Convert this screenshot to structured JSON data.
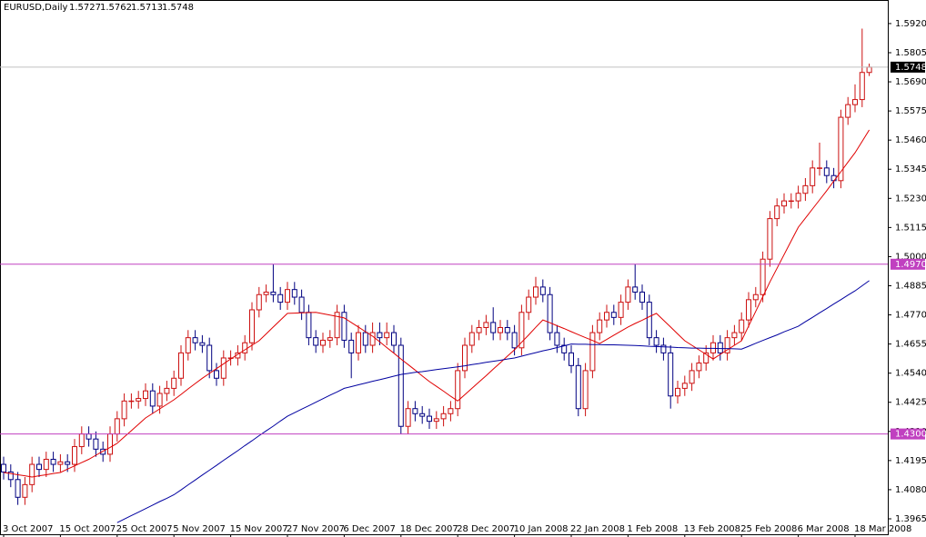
{
  "chart_data": {
    "type": "candlestick",
    "title": "EURUSD,Daily",
    "categories": [
      "3 Oct 2007",
      null,
      null,
      null,
      null,
      null,
      null,
      null,
      "15 Oct 2007",
      null,
      null,
      null,
      null,
      null,
      null,
      null,
      "25 Oct 2007",
      null,
      null,
      null,
      null,
      null,
      null,
      null,
      "5 Nov 2007",
      null,
      null,
      null,
      null,
      null,
      null,
      null,
      "15 Nov 2007",
      null,
      null,
      null,
      null,
      null,
      null,
      null,
      "27 Nov 2007",
      null,
      null,
      null,
      null,
      null,
      null,
      null,
      "6 Dec 2007",
      null,
      null,
      null,
      null,
      null,
      null,
      null,
      "18 Dec 2007",
      null,
      null,
      null,
      null,
      null,
      null,
      null,
      "28 Dec 2007",
      null,
      null,
      null,
      null,
      null,
      null,
      null,
      "10 Jan 2008",
      null,
      null,
      null,
      null,
      null,
      null,
      null,
      "22 Jan 2008",
      null,
      null,
      null,
      null,
      null,
      null,
      null,
      "1 Feb 2008",
      null,
      null,
      null,
      null,
      null,
      null,
      null,
      "13 Feb 2008",
      null,
      null,
      null,
      null,
      null,
      null,
      null,
      "25 Feb 2008",
      null,
      null,
      null,
      null,
      null,
      null,
      null,
      "6 Mar 2008",
      null,
      null,
      null,
      null,
      null,
      null,
      null,
      "18 Mar 2008",
      null,
      null
    ],
    "open": [
      1.418,
      1.415,
      1.412,
      1.405,
      1.41,
      1.418,
      1.416,
      1.42,
      1.418,
      1.419,
      1.418,
      1.425,
      1.43,
      1.428,
      1.424,
      1.422,
      1.43,
      1.436,
      1.443,
      1.443,
      1.444,
      1.447,
      1.441,
      1.446,
      1.448,
      1.452,
      1.462,
      1.468,
      1.466,
      1.465,
      1.455,
      1.452,
      1.46,
      1.46,
      1.462,
      1.466,
      1.479,
      1.485,
      1.486,
      1.485,
      1.482,
      1.487,
      1.484,
      1.478,
      1.468,
      1.465,
      1.467,
      1.468,
      1.478,
      1.467,
      1.462,
      1.47,
      1.465,
      1.47,
      1.468,
      1.47,
      1.465,
      1.433,
      1.44,
      1.438,
      1.437,
      1.435,
      1.436,
      1.438,
      1.44,
      1.455,
      1.465,
      1.47,
      1.472,
      1.474,
      1.47,
      1.472,
      1.47,
      1.464,
      1.478,
      1.484,
      1.488,
      1.485,
      1.47,
      1.465,
      1.462,
      1.457,
      1.44,
      1.455,
      1.47,
      1.475,
      1.478,
      1.476,
      1.482,
      1.488,
      1.486,
      1.482,
      1.468,
      1.465,
      1.462,
      1.445,
      1.448,
      1.45,
      1.455,
      1.458,
      1.462,
      1.466,
      1.462,
      1.468,
      1.47,
      1.475,
      1.483,
      1.485,
      1.499,
      1.515,
      1.52,
      1.522,
      1.522,
      1.525,
      1.528,
      1.535,
      1.535,
      1.532,
      1.53,
      1.555,
      1.56,
      1.562,
      1.5727
    ],
    "high": [
      1.421,
      1.418,
      1.415,
      1.413,
      1.421,
      1.421,
      1.423,
      1.423,
      1.422,
      1.422,
      1.428,
      1.433,
      1.433,
      1.431,
      1.427,
      1.433,
      1.439,
      1.446,
      1.446,
      1.447,
      1.45,
      1.45,
      1.449,
      1.451,
      1.455,
      1.465,
      1.471,
      1.471,
      1.469,
      1.468,
      1.458,
      1.463,
      1.463,
      1.465,
      1.469,
      1.482,
      1.488,
      1.489,
      1.497,
      1.488,
      1.49,
      1.49,
      1.487,
      1.481,
      1.471,
      1.47,
      1.471,
      1.481,
      1.481,
      1.47,
      1.473,
      1.473,
      1.474,
      1.474,
      1.474,
      1.473,
      1.468,
      1.443,
      1.443,
      1.441,
      1.44,
      1.439,
      1.441,
      1.443,
      1.458,
      1.468,
      1.473,
      1.475,
      1.477,
      1.48,
      1.475,
      1.475,
      1.473,
      1.481,
      1.487,
      1.492,
      1.491,
      1.488,
      1.473,
      1.468,
      1.465,
      1.46,
      1.458,
      1.473,
      1.478,
      1.481,
      1.481,
      1.485,
      1.491,
      1.497,
      1.489,
      1.485,
      1.471,
      1.468,
      1.465,
      1.451,
      1.453,
      1.458,
      1.461,
      1.465,
      1.469,
      1.469,
      1.471,
      1.473,
      1.478,
      1.486,
      1.488,
      1.502,
      1.518,
      1.523,
      1.525,
      1.525,
      1.528,
      1.531,
      1.538,
      1.545,
      1.538,
      1.535,
      1.558,
      1.563,
      1.568,
      1.59,
      1.5762
    ],
    "low": [
      1.412,
      1.409,
      1.402,
      1.402,
      1.407,
      1.413,
      1.413,
      1.415,
      1.415,
      1.415,
      1.415,
      1.422,
      1.425,
      1.421,
      1.419,
      1.419,
      1.427,
      1.433,
      1.44,
      1.44,
      1.441,
      1.438,
      1.438,
      1.443,
      1.445,
      1.449,
      1.459,
      1.463,
      1.462,
      1.452,
      1.449,
      1.449,
      1.457,
      1.457,
      1.459,
      1.463,
      1.476,
      1.482,
      1.482,
      1.479,
      1.479,
      1.481,
      1.475,
      1.465,
      1.462,
      1.462,
      1.464,
      1.465,
      1.464,
      1.452,
      1.459,
      1.462,
      1.462,
      1.465,
      1.465,
      1.462,
      1.43,
      1.43,
      1.435,
      1.434,
      1.432,
      1.432,
      1.433,
      1.435,
      1.437,
      1.452,
      1.462,
      1.467,
      1.469,
      1.467,
      1.467,
      1.467,
      1.461,
      1.461,
      1.475,
      1.481,
      1.482,
      1.467,
      1.462,
      1.459,
      1.454,
      1.437,
      1.437,
      1.452,
      1.467,
      1.472,
      1.473,
      1.473,
      1.479,
      1.483,
      1.479,
      1.465,
      1.462,
      1.459,
      1.44,
      1.442,
      1.445,
      1.447,
      1.452,
      1.455,
      1.459,
      1.459,
      1.459,
      1.465,
      1.467,
      1.472,
      1.48,
      1.482,
      1.496,
      1.512,
      1.517,
      1.519,
      1.519,
      1.522,
      1.525,
      1.532,
      1.529,
      1.527,
      1.527,
      1.552,
      1.557,
      1.559,
      1.5713
    ],
    "close": [
      1.415,
      1.412,
      1.405,
      1.41,
      1.418,
      1.416,
      1.42,
      1.418,
      1.419,
      1.418,
      1.425,
      1.43,
      1.428,
      1.424,
      1.422,
      1.43,
      1.436,
      1.443,
      1.443,
      1.444,
      1.447,
      1.441,
      1.446,
      1.448,
      1.452,
      1.462,
      1.468,
      1.466,
      1.465,
      1.455,
      1.452,
      1.46,
      1.46,
      1.462,
      1.466,
      1.479,
      1.485,
      1.486,
      1.485,
      1.482,
      1.487,
      1.484,
      1.478,
      1.468,
      1.465,
      1.467,
      1.468,
      1.478,
      1.467,
      1.462,
      1.47,
      1.465,
      1.47,
      1.468,
      1.47,
      1.465,
      1.433,
      1.44,
      1.438,
      1.437,
      1.435,
      1.436,
      1.438,
      1.44,
      1.455,
      1.465,
      1.47,
      1.472,
      1.474,
      1.47,
      1.472,
      1.47,
      1.464,
      1.478,
      1.484,
      1.488,
      1.485,
      1.47,
      1.465,
      1.462,
      1.457,
      1.44,
      1.455,
      1.47,
      1.475,
      1.478,
      1.476,
      1.482,
      1.488,
      1.486,
      1.482,
      1.468,
      1.465,
      1.462,
      1.445,
      1.448,
      1.45,
      1.455,
      1.458,
      1.462,
      1.466,
      1.462,
      1.468,
      1.47,
      1.475,
      1.483,
      1.485,
      1.499,
      1.515,
      1.52,
      1.522,
      1.522,
      1.525,
      1.528,
      1.535,
      1.535,
      1.532,
      1.53,
      1.555,
      1.56,
      1.562,
      1.5727,
      1.5748
    ],
    "up_color": "#cc1010",
    "down_color": "#000080",
    "overlays": [
      {
        "color": "#e00000",
        "values": [
          1.4148,
          1.4144,
          1.4139,
          1.4135,
          1.413,
          1.4135,
          1.4139,
          1.4144,
          1.4148,
          1.4161,
          1.4174,
          1.4187,
          1.42,
          1.4216,
          1.4232,
          1.4247,
          1.4263,
          1.4288,
          1.4313,
          1.4338,
          1.4363,
          1.4381,
          1.4399,
          1.4417,
          1.4435,
          1.4456,
          1.4478,
          1.4499,
          1.452,
          1.4539,
          1.4558,
          1.4577,
          1.4596,
          1.4614,
          1.4632,
          1.465,
          1.4668,
          1.4695,
          1.4722,
          1.4749,
          1.4776,
          1.4777,
          1.4778,
          1.4779,
          1.478,
          1.4775,
          1.4769,
          1.4764,
          1.4758,
          1.474,
          1.4722,
          1.4704,
          1.4686,
          1.4664,
          1.4641,
          1.4619,
          1.4596,
          1.4574,
          1.4552,
          1.4529,
          1.4507,
          1.4488,
          1.4469,
          1.4449,
          1.443,
          1.4455,
          1.448,
          1.4505,
          1.453,
          1.4556,
          1.4581,
          1.4607,
          1.4632,
          1.4662,
          1.4691,
          1.4721,
          1.475,
          1.4739,
          1.4727,
          1.4716,
          1.4704,
          1.4692,
          1.468,
          1.4669,
          1.4657,
          1.4673,
          1.469,
          1.4706,
          1.4722,
          1.4736,
          1.4749,
          1.4763,
          1.4776,
          1.4749,
          1.4722,
          1.4695,
          1.4668,
          1.465,
          1.4632,
          1.4614,
          1.4596,
          1.4614,
          1.4632,
          1.465,
          1.4668,
          1.4726,
          1.4784,
          1.4842,
          1.49,
          1.4954,
          1.5008,
          1.5062,
          1.5116,
          1.5152,
          1.5188,
          1.5224,
          1.526,
          1.5298,
          1.5335,
          1.5373,
          1.541,
          1.5455,
          1.55
        ]
      },
      {
        "color": "#0000a0",
        "values": [
          null,
          null,
          null,
          null,
          null,
          null,
          null,
          null,
          null,
          null,
          null,
          null,
          null,
          null,
          null,
          null,
          1.395,
          1.3964,
          1.3978,
          1.3991,
          1.4005,
          1.4019,
          1.4033,
          1.4046,
          1.406,
          1.4079,
          1.4099,
          1.4118,
          1.4138,
          1.4157,
          1.4176,
          1.4196,
          1.4215,
          1.4234,
          1.4254,
          1.4273,
          1.4293,
          1.4312,
          1.4331,
          1.4351,
          1.437,
          1.4384,
          1.4398,
          1.4411,
          1.4425,
          1.4439,
          1.4453,
          1.4466,
          1.448,
          1.4487,
          1.4494,
          1.4501,
          1.4508,
          1.4514,
          1.4521,
          1.4528,
          1.4535,
          1.4539,
          1.4543,
          1.4546,
          1.455,
          1.4554,
          1.4558,
          1.4561,
          1.4565,
          1.4569,
          1.4574,
          1.4578,
          1.4583,
          1.4587,
          1.4591,
          1.4596,
          1.46,
          1.4607,
          1.4614,
          1.4621,
          1.4628,
          1.4634,
          1.4641,
          1.4648,
          1.4655,
          1.4654,
          1.4654,
          1.4653,
          1.4653,
          1.4652,
          1.4652,
          1.4651,
          1.465,
          1.4649,
          1.4648,
          1.4646,
          1.4645,
          1.4644,
          1.4643,
          1.4641,
          1.464,
          1.4639,
          1.4639,
          1.4638,
          1.4638,
          1.4637,
          1.4637,
          1.4636,
          1.4635,
          1.4646,
          1.4658,
          1.4669,
          1.468,
          1.4691,
          1.4703,
          1.4714,
          1.4725,
          1.4743,
          1.476,
          1.4778,
          1.4795,
          1.4813,
          1.483,
          1.4848,
          1.4865,
          1.4885,
          1.4905
        ]
      }
    ],
    "hlines": [
      {
        "value": 1.497,
        "label": "1.4970",
        "color": "#c040c0"
      },
      {
        "value": 1.43,
        "label": "1.4300",
        "color": "#c040c0"
      }
    ],
    "bid_line_color": "#c0c0c0",
    "ylim": [
      1.3904,
      1.6013
    ],
    "yticks": [
      {
        "value": 1.592,
        "label": "1.5920"
      },
      1.5805,
      {
        "value": 1.569,
        "label": "1.5690"
      },
      1.5575,
      {
        "value": 1.546,
        "label": "1.5460"
      },
      1.5345,
      {
        "value": 1.523,
        "label": "1.5230"
      },
      1.5115,
      {
        "value": 1.5,
        "label": "1.5000"
      },
      1.4885,
      {
        "value": 1.477,
        "label": "1.4770"
      },
      1.4655,
      {
        "value": 1.454,
        "label": "1.4540"
      },
      1.4425,
      {
        "value": 1.431,
        "label": "1.4310"
      },
      1.4195,
      {
        "value": 1.408,
        "label": "1.4080"
      },
      1.3965
    ]
  }
}
